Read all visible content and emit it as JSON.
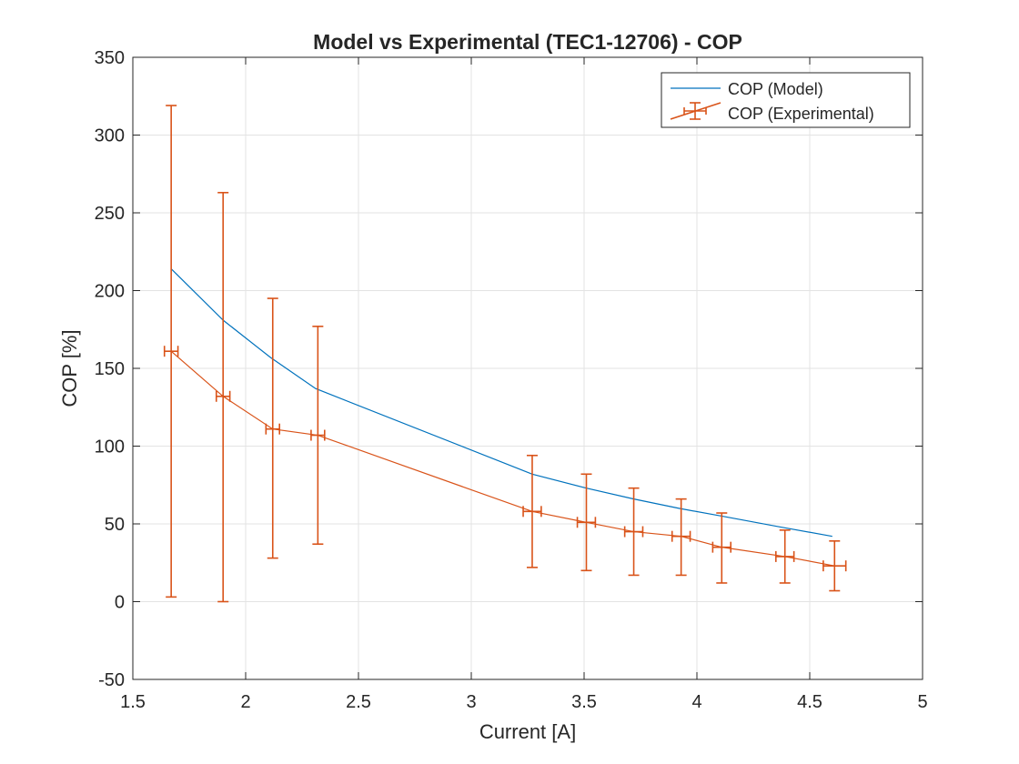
{
  "chart_data": {
    "type": "line",
    "title": "Model vs Experimental (TEC1-12706) - COP",
    "xlabel": "Current [A]",
    "ylabel": "COP [%]",
    "xlim": [
      1.5,
      5
    ],
    "ylim": [
      -50,
      350
    ],
    "xticks": [
      1.5,
      2,
      2.5,
      3,
      3.5,
      4,
      4.5,
      5
    ],
    "yticks": [
      -50,
      0,
      50,
      100,
      150,
      200,
      250,
      300,
      350
    ],
    "xtick_labels": [
      "1.5",
      "2",
      "2.5",
      "3",
      "3.5",
      "4",
      "4.5",
      "5"
    ],
    "ytick_labels": [
      "-50",
      "0",
      "50",
      "100",
      "150",
      "200",
      "250",
      "300",
      "350"
    ],
    "grid": true,
    "legend_position": "top-right",
    "series": [
      {
        "name": "COP (Model)",
        "color": "#0072BD",
        "kind": "line",
        "x": [
          1.67,
          1.9,
          2.11,
          2.31,
          3.27,
          3.51,
          3.72,
          3.92,
          4.11,
          4.37,
          4.6
        ],
        "y": [
          214,
          181,
          157,
          137,
          82,
          73,
          66,
          60,
          55,
          48,
          42
        ]
      },
      {
        "name": "COP (Experimental)",
        "color": "#D95319",
        "kind": "errorbar",
        "x": [
          1.67,
          1.9,
          2.12,
          2.32,
          3.27,
          3.51,
          3.72,
          3.93,
          4.11,
          4.39,
          4.61
        ],
        "y": [
          161,
          132,
          111,
          107,
          58,
          51,
          45,
          42,
          35,
          29,
          23
        ],
        "y_lower": [
          3,
          0,
          28,
          37,
          22,
          20,
          17,
          17,
          12,
          12,
          7
        ],
        "y_upper": [
          319,
          263,
          195,
          177,
          94,
          82,
          73,
          66,
          57,
          46,
          39
        ],
        "x_error": [
          0.03,
          0.03,
          0.03,
          0.03,
          0.04,
          0.04,
          0.04,
          0.04,
          0.04,
          0.04,
          0.05
        ]
      }
    ]
  }
}
